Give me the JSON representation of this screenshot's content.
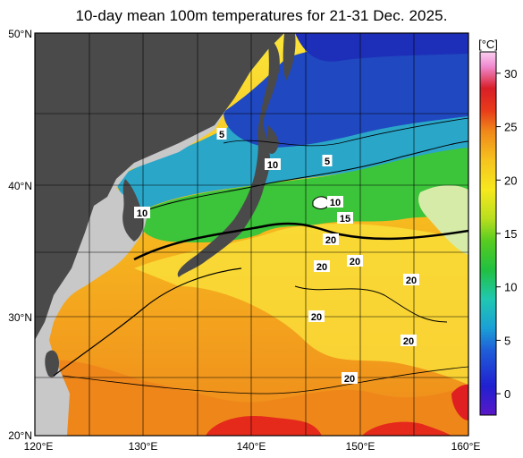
{
  "title": "10-day mean 100m temperatures for 21-31 Dec. 2025.",
  "map": {
    "lon_range": [
      120,
      160
    ],
    "lat_range": [
      20,
      50
    ],
    "lon_ticks": [
      "120°E",
      "130°E",
      "140°E",
      "150°E",
      "160°E"
    ],
    "lat_ticks": [
      "20°N",
      "30°N",
      "40°N",
      "50°N"
    ],
    "contour_labels": [
      "5",
      "5",
      "10",
      "10",
      "10",
      "15",
      "20",
      "20",
      "20",
      "20",
      "20",
      "20",
      "20"
    ]
  },
  "colorbar": {
    "unit": "[°C]",
    "ticks": [
      "0",
      "5",
      "10",
      "15",
      "20",
      "25",
      "30"
    ],
    "range": [
      -2,
      32
    ]
  },
  "colors": {
    "land": "#4a4a4a",
    "land_other": "#c8c8c8",
    "cold": "#1f3fbf",
    "cool": "#2ca9cf",
    "mild": "#37c23a",
    "warm": "#f5dc1e",
    "hot": "#f08a17",
    "very_hot": "#e02020"
  }
}
